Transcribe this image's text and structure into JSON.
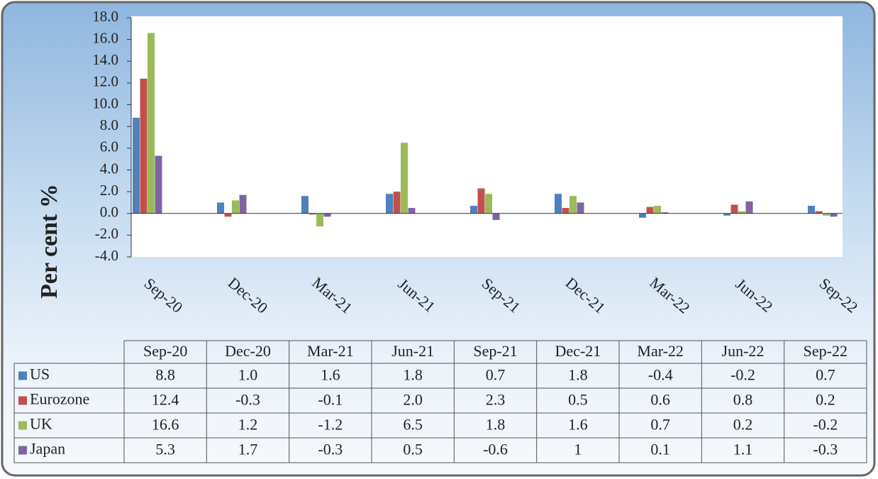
{
  "chart_data": {
    "type": "bar",
    "ylabel": "Per cent %",
    "categories": [
      "Sep-20",
      "Dec-20",
      "Mar-21",
      "Jun-21",
      "Sep-21",
      "Dec-21",
      "Mar-22",
      "Jun-22",
      "Sep-22"
    ],
    "series": [
      {
        "name": "US",
        "color": "#4f81bd",
        "values": [
          8.8,
          1.0,
          1.6,
          1.8,
          0.7,
          1.8,
          -0.4,
          -0.2,
          0.7
        ],
        "value_labels": [
          "8.8",
          "1.0",
          "1.6",
          "1.8",
          "0.7",
          "1.8",
          "-0.4",
          "-0.2",
          "0.7"
        ]
      },
      {
        "name": "Eurozone",
        "color": "#c0504d",
        "values": [
          12.4,
          -0.3,
          -0.1,
          2.0,
          2.3,
          0.5,
          0.6,
          0.8,
          0.2
        ],
        "value_labels": [
          "12.4",
          "-0.3",
          "-0.1",
          "2.0",
          "2.3",
          "0.5",
          "0.6",
          "0.8",
          "0.2"
        ]
      },
      {
        "name": "UK",
        "color": "#9bbb59",
        "values": [
          16.6,
          1.2,
          -1.2,
          6.5,
          1.8,
          1.6,
          0.7,
          0.2,
          -0.2
        ],
        "value_labels": [
          "16.6",
          "1.2",
          "-1.2",
          "6.5",
          "1.8",
          "1.6",
          "0.7",
          "0.2",
          "-0.2"
        ]
      },
      {
        "name": "Japan",
        "color": "#8064a2",
        "values": [
          5.3,
          1.7,
          -0.3,
          0.5,
          -0.6,
          1,
          0.1,
          1.1,
          -0.3
        ],
        "value_labels": [
          "5.3",
          "1.7",
          "-0.3",
          "0.5",
          "-0.6",
          "1",
          "0.1",
          "1.1",
          "-0.3"
        ]
      }
    ],
    "ylim": [
      -4,
      18
    ],
    "yticks": [
      {
        "value": -4,
        "label": "-4.0"
      },
      {
        "value": -2,
        "label": "-2.0"
      },
      {
        "value": 0,
        "label": "0.0"
      },
      {
        "value": 2,
        "label": "2.0"
      },
      {
        "value": 4,
        "label": "4.0"
      },
      {
        "value": 6,
        "label": "6.0"
      },
      {
        "value": 8,
        "label": "8.0"
      },
      {
        "value": 10,
        "label": "10.0"
      },
      {
        "value": 12,
        "label": "12.0"
      },
      {
        "value": 14,
        "label": "14.0"
      },
      {
        "value": 16,
        "label": "16.0"
      },
      {
        "value": 18,
        "label": "18.0"
      }
    ],
    "grid": false
  }
}
